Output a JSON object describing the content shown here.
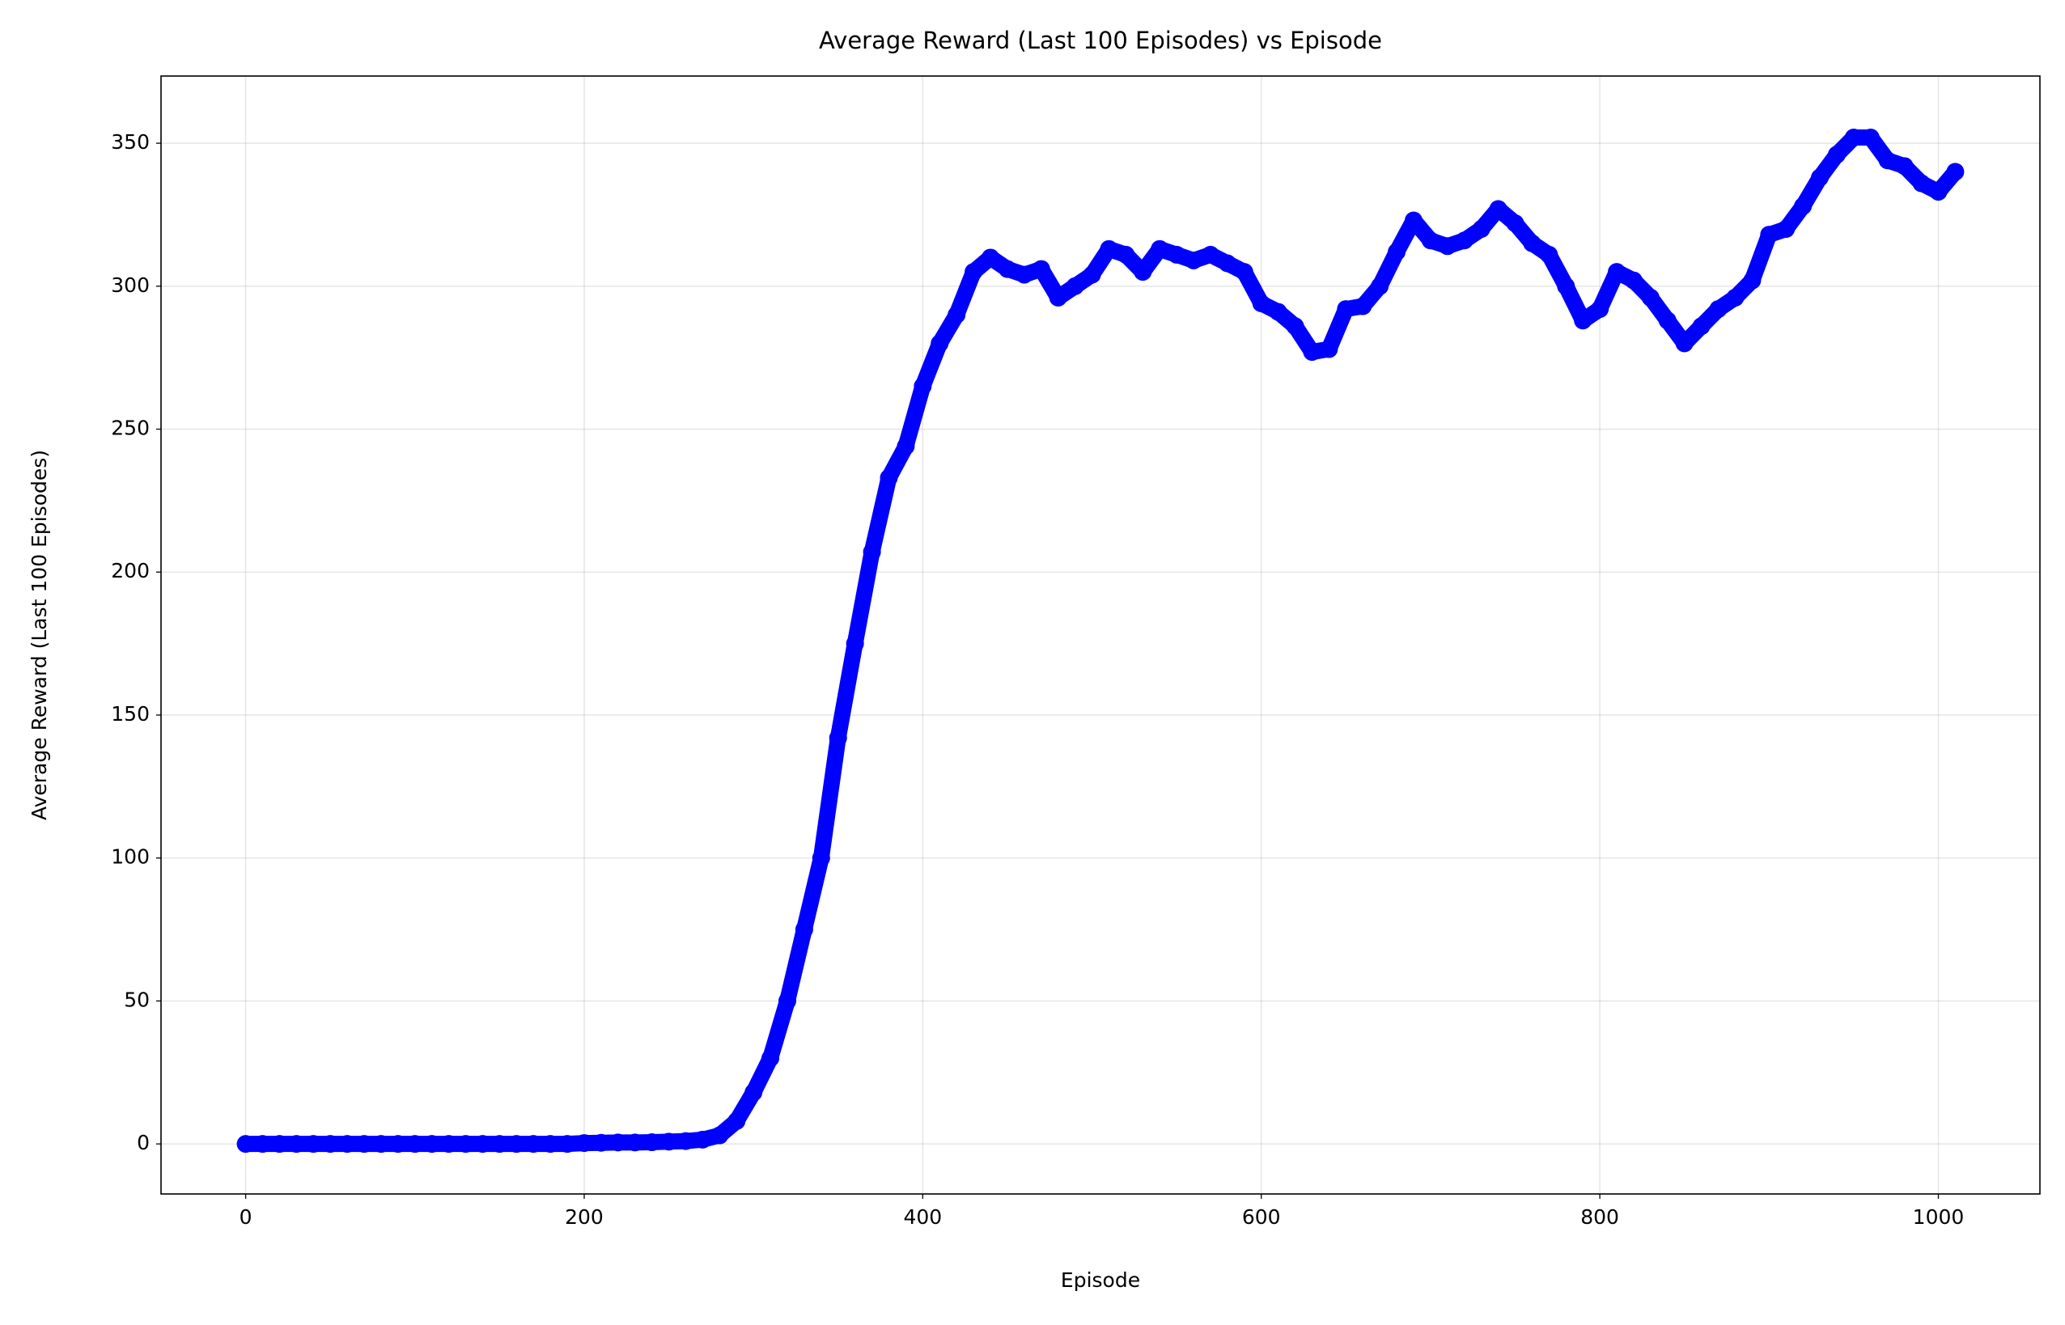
{
  "chart_data": {
    "type": "line",
    "title": "Average Reward (Last 100 Episodes) vs Episode",
    "x_label": "Episode",
    "y_label": "Average Reward (Last 100 Episodes)",
    "x": [
      0,
      10,
      20,
      30,
      40,
      50,
      60,
      70,
      80,
      90,
      100,
      110,
      120,
      130,
      140,
      150,
      160,
      170,
      180,
      190,
      200,
      210,
      220,
      230,
      240,
      250,
      260,
      270,
      280,
      290,
      300,
      310,
      320,
      330,
      340,
      350,
      360,
      370,
      380,
      390,
      400,
      410,
      420,
      430,
      440,
      450,
      460,
      470,
      480,
      490,
      500,
      510,
      520,
      530,
      540,
      550,
      560,
      570,
      580,
      590,
      600,
      610,
      620,
      630,
      640,
      650,
      660,
      670,
      680,
      690,
      700,
      710,
      720,
      730,
      740,
      750,
      760,
      770,
      780,
      790,
      800,
      810,
      820,
      830,
      840,
      850,
      860,
      870,
      880,
      890,
      900,
      910,
      920,
      930,
      940,
      950,
      960,
      970,
      980,
      990,
      1000,
      1010
    ],
    "series": [
      {
        "name": "Average Reward",
        "color": "#0000ff",
        "values": [
          0,
          0,
          0,
          0,
          0,
          0,
          0,
          0,
          0,
          0,
          0,
          0,
          0,
          0,
          0,
          0,
          0,
          0,
          0,
          0,
          0.3,
          0.4,
          0.5,
          0.5,
          0.6,
          0.8,
          1,
          1.5,
          3,
          8,
          18,
          30,
          50,
          75,
          100,
          142,
          175,
          207,
          233,
          244,
          265,
          280,
          290,
          305,
          310,
          306,
          304,
          306,
          296,
          300,
          304,
          313,
          311,
          305,
          313,
          311,
          309,
          311,
          308,
          305,
          294,
          291,
          286,
          277,
          278,
          292,
          293,
          300,
          312,
          323,
          316,
          314,
          316,
          320,
          327,
          322,
          315,
          311,
          300,
          288,
          292,
          305,
          302,
          296,
          288,
          280,
          286,
          292,
          296,
          302,
          318,
          320,
          328,
          338,
          346,
          352,
          352,
          344,
          342,
          336,
          333,
          340
        ]
      }
    ],
    "xlim": [
      -50,
      1060
    ],
    "ylim": [
      -17.5,
      373.5
    ],
    "xticks": [
      0,
      200,
      400,
      600,
      800,
      1000
    ],
    "yticks": [
      0,
      50,
      100,
      150,
      200,
      250,
      300,
      350
    ],
    "grid": true
  }
}
